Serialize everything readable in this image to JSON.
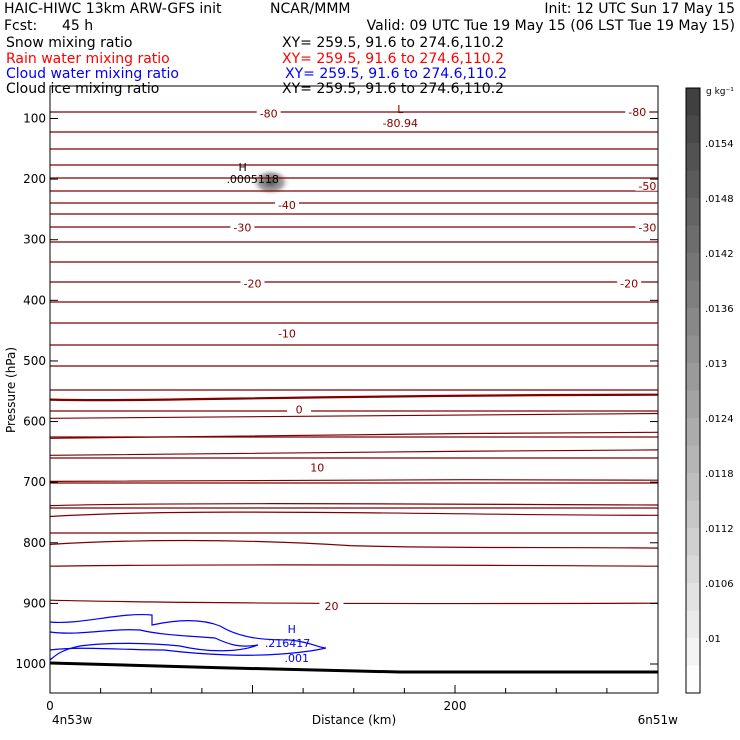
{
  "header": {
    "model": "HAIC-HIWC 13km ARW-GFS init",
    "org": "NCAR/MMM",
    "init": "Init: 12 UTC Sun 17 May 15",
    "fcst_label": "Fcst:",
    "fcst_value": "45 h",
    "valid": "Valid: 09 UTC Tue 19 May 15 (06 LST Tue 19 May 15)",
    "fields": [
      {
        "name": "Snow mixing ratio",
        "xy": "XY= 259.5, 91.6 to 274.6,110.2",
        "color": "#000000"
      },
      {
        "name": "Rain water mixing ratio",
        "xy": "XY= 259.5, 91.6 to 274.6,110.2",
        "color": "#ff0000"
      },
      {
        "name": "Cloud water mixing ratio",
        "xy": "XY= 259.5, 91.6 to 274.6,110.2",
        "color": "#0000ff"
      },
      {
        "name": "Cloud ice mixing ratio",
        "xy": "XY= 259.5, 91.6 to 274.6,110.2",
        "color": "#000000"
      }
    ]
  },
  "chart_data": {
    "type": "contour",
    "title": "",
    "xlabel": "Distance (km)",
    "ylabel": "Pressure (hPa)",
    "xlim": [
      0,
      299
    ],
    "ylim": [
      1050,
      65
    ],
    "x_ticks": [
      0,
      200
    ],
    "x_end_labels": {
      "left": "4n53w",
      "right": "6n51w"
    },
    "y_ticks": [
      100,
      200,
      300,
      400,
      500,
      600,
      700,
      800,
      900,
      1000
    ],
    "temperature_contours": {
      "color": "#800000",
      "labels": [
        {
          "text": "-80",
          "x": 108,
          "p": 92
        },
        {
          "text": "-80",
          "x": 290,
          "p": 89
        },
        {
          "text": "-50",
          "x": 295,
          "p": 211
        },
        {
          "text": "-40",
          "x": 117,
          "p": 243
        },
        {
          "text": "-30",
          "x": 95,
          "p": 280
        },
        {
          "text": "-30",
          "x": 295,
          "p": 280
        },
        {
          "text": "-20",
          "x": 100,
          "p": 372
        },
        {
          "text": "-20",
          "x": 286,
          "p": 372
        },
        {
          "text": "-10",
          "x": 117,
          "p": 455
        },
        {
          "text": "0",
          "x": 123,
          "p": 580
        },
        {
          "text": "10",
          "x": 132,
          "p": 676
        },
        {
          "text": "20",
          "x": 139,
          "p": 904
        }
      ],
      "low": {
        "symbol": "L",
        "value": "-80.94",
        "x": 173,
        "p": 88
      }
    },
    "snow_max": {
      "symbol": "H",
      "value": ".0005118",
      "x": 98,
      "p": 200
    },
    "cloud_water": {
      "color": "#0000ff",
      "max": {
        "symbol": "H",
        "value": ".216417",
        "x": 63,
        "p": 952
      },
      "contour_label": ".001",
      "contour_label_pos": {
        "x": 101,
        "p": 990
      }
    },
    "colorbar": {
      "unit": "g kg⁻¹",
      "labels": [
        ".0154",
        ".0148",
        ".0142",
        ".0136",
        ".013",
        ".0124",
        ".0118",
        ".0112",
        ".0106",
        ".01"
      ]
    }
  }
}
